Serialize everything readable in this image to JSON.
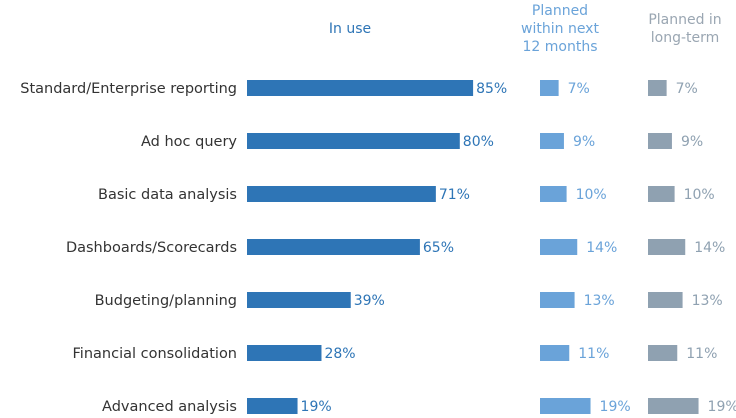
{
  "chart_data": {
    "type": "bar",
    "orientation": "horizontal",
    "categories": [
      "Standard/Enterprise reporting",
      "Ad hoc query",
      "Basic data analysis",
      "Dashboards/Scorecards",
      "Budgeting/planning",
      "Financial consolidation",
      "Advanced analysis"
    ],
    "series": [
      {
        "name": "In use",
        "values": [
          85,
          80,
          71,
          65,
          39,
          28,
          19
        ],
        "color": "#2e75b6"
      },
      {
        "name": "Planned within next 12 months",
        "values": [
          7,
          9,
          10,
          14,
          13,
          11,
          19
        ],
        "color": "#6aa3d9"
      },
      {
        "name": "Planned in long-term",
        "values": [
          7,
          9,
          10,
          14,
          13,
          11,
          19
        ],
        "color": "#8fa1b1"
      }
    ],
    "value_suffix": "%",
    "grid": false,
    "legend": "top (column headers)"
  },
  "headers": {
    "in_use": "In use",
    "planned_next": [
      "Planned",
      "within next",
      "12 months"
    ],
    "planned_long": [
      "Planned in",
      "long-term"
    ]
  }
}
